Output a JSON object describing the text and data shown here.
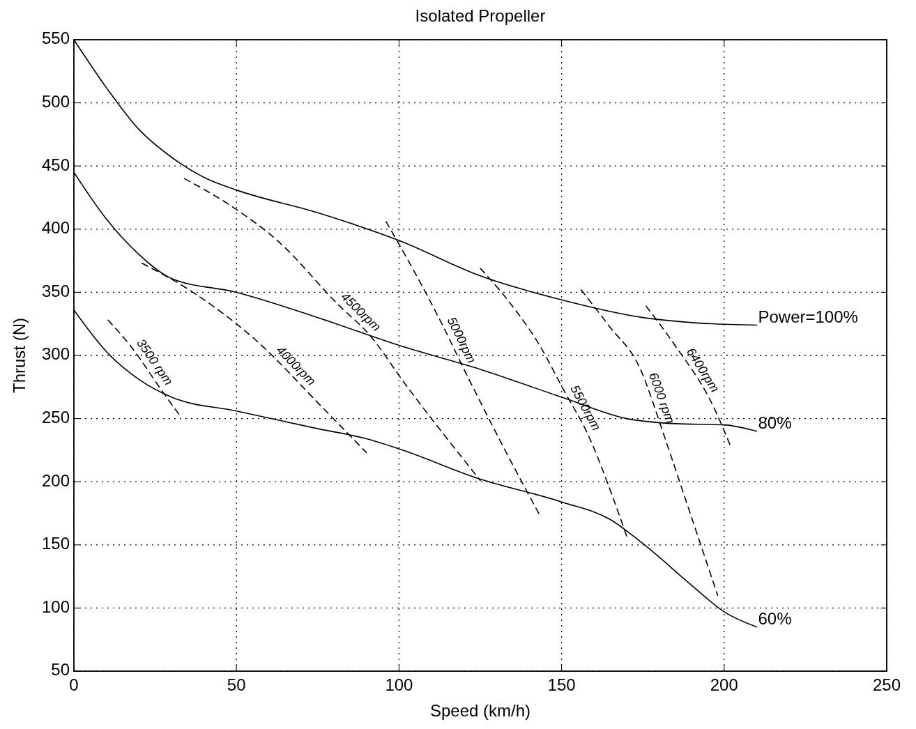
{
  "chart_data": {
    "type": "line",
    "title": "Isolated Propeller",
    "xlabel": "Speed (km/h)",
    "ylabel": "Thrust (N)",
    "xlim": [
      0,
      250
    ],
    "xticks": [
      0,
      50,
      100,
      150,
      200,
      250
    ],
    "ylim": [
      50,
      550
    ],
    "yticks": [
      50,
      100,
      150,
      200,
      250,
      300,
      350,
      400,
      450,
      500,
      550
    ],
    "grid": true,
    "series": [
      {
        "name": "Power=100%",
        "color": "#000000",
        "line_style": "solid",
        "x": [
          0,
          10,
          20,
          30,
          40,
          50,
          75,
          100,
          125,
          150,
          175,
          190,
          210
        ],
        "values": [
          550,
          512,
          479,
          457,
          441,
          431,
          413,
          391,
          363,
          344,
          330,
          326,
          324
        ]
      },
      {
        "name": "80%",
        "color": "#000000",
        "line_style": "solid",
        "x": [
          0,
          10,
          20,
          30,
          50,
          75,
          100,
          125,
          150,
          170,
          185,
          200,
          210
        ],
        "values": [
          445,
          408,
          380,
          361,
          350,
          330,
          308,
          289,
          267,
          250,
          246,
          245,
          240
        ]
      },
      {
        "name": "60%",
        "color": "#000000",
        "line_style": "solid",
        "x": [
          0,
          10,
          20,
          30,
          50,
          75,
          90,
          100,
          125,
          150,
          165,
          175,
          190,
          200,
          210
        ],
        "values": [
          336,
          303,
          281,
          267,
          256,
          242,
          234,
          226,
          202,
          184,
          170,
          151,
          118,
          97,
          85
        ]
      },
      {
        "name": "3500 rpm",
        "color": "#000000",
        "line_style": "dashed",
        "x": [
          10.5,
          17.6,
          26.8,
          33
        ],
        "values": [
          328,
          307,
          273,
          251
        ]
      },
      {
        "name": "4000rpm",
        "color": "#000000",
        "line_style": "dashed",
        "x": [
          21,
          36,
          56,
          76,
          90
        ],
        "values": [
          373,
          351,
          312,
          260,
          223
        ]
      },
      {
        "name": "4500rpm",
        "color": "#000000",
        "line_style": "dashed",
        "x": [
          34,
          48,
          63,
          81,
          91,
          102,
          125
        ],
        "values": [
          440,
          419,
          390,
          341,
          316,
          277,
          201
        ]
      },
      {
        "name": "5000rpm",
        "color": "#000000",
        "line_style": "dashed",
        "x": [
          96,
          103.5,
          112.6,
          120,
          132,
          143.6
        ],
        "values": [
          406,
          372,
          328,
          289,
          228,
          172
        ]
      },
      {
        "name": "5500rpm",
        "color": "#000000",
        "line_style": "dashed",
        "x": [
          125,
          134,
          143,
          151,
          158,
          166,
          170
        ],
        "values": [
          369,
          342,
          309,
          271,
          238,
          186,
          157
        ]
      },
      {
        "name": "6000 rpm",
        "color": "#000000",
        "line_style": "dashed",
        "x": [
          156,
          164.7,
          173.9,
          181.6,
          187.6,
          198
        ],
        "values": [
          352,
          323,
          291,
          236,
          190,
          110
        ]
      },
      {
        "name": "6400rpm",
        "color": "#000000",
        "line_style": "dashed",
        "x": [
          176,
          184.6,
          196.8,
          202
        ],
        "values": [
          339,
          309,
          259,
          228
        ]
      }
    ]
  }
}
